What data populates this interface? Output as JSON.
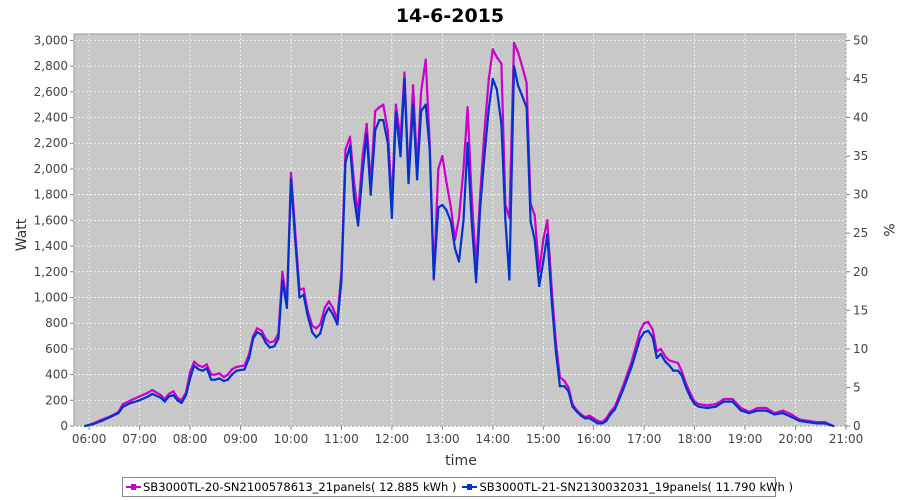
{
  "chart_data": {
    "type": "line",
    "title": "14-6-2015",
    "xlabel": "time",
    "ylabel": "Watt",
    "y2label": "%",
    "xlim": [
      5.7,
      21.0
    ],
    "ylim": [
      0,
      3050
    ],
    "y2lim": [
      0,
      50.83
    ],
    "x_ticks": [
      "06:00",
      "07:00",
      "08:00",
      "09:00",
      "10:00",
      "11:00",
      "12:00",
      "13:00",
      "14:00",
      "15:00",
      "16:00",
      "17:00",
      "18:00",
      "19:00",
      "20:00",
      "21:00"
    ],
    "y_ticks": [
      "0",
      "200",
      "400",
      "600",
      "800",
      "1,000",
      "1,200",
      "1,400",
      "1,600",
      "1,800",
      "2,000",
      "2,200",
      "2,400",
      "2,600",
      "2,800",
      "3,000"
    ],
    "y2_ticks": [
      "0",
      "5",
      "10",
      "15",
      "20",
      "25",
      "30",
      "35",
      "40",
      "45",
      "50"
    ],
    "grid": true,
    "plot_background": "#c8c8c8",
    "legend_position": "bottom",
    "series": [
      {
        "name": "SB3000TL-20-SN2100578613_21panels( 12.885 kWh )",
        "color": "#cc00cc",
        "points": [
          [
            5.92,
            0
          ],
          [
            6.08,
            20
          ],
          [
            6.25,
            50
          ],
          [
            6.42,
            75
          ],
          [
            6.58,
            110
          ],
          [
            6.67,
            170
          ],
          [
            6.83,
            200
          ],
          [
            7.0,
            230
          ],
          [
            7.17,
            260
          ],
          [
            7.25,
            280
          ],
          [
            7.42,
            240
          ],
          [
            7.5,
            210
          ],
          [
            7.58,
            250
          ],
          [
            7.67,
            270
          ],
          [
            7.75,
            220
          ],
          [
            7.83,
            200
          ],
          [
            7.92,
            260
          ],
          [
            8.0,
            420
          ],
          [
            8.08,
            500
          ],
          [
            8.17,
            470
          ],
          [
            8.25,
            460
          ],
          [
            8.33,
            480
          ],
          [
            8.42,
            400
          ],
          [
            8.5,
            400
          ],
          [
            8.58,
            410
          ],
          [
            8.67,
            380
          ],
          [
            8.75,
            400
          ],
          [
            8.83,
            440
          ],
          [
            8.92,
            460
          ],
          [
            9.08,
            470
          ],
          [
            9.17,
            560
          ],
          [
            9.25,
            700
          ],
          [
            9.33,
            760
          ],
          [
            9.42,
            740
          ],
          [
            9.5,
            680
          ],
          [
            9.58,
            650
          ],
          [
            9.67,
            660
          ],
          [
            9.75,
            720
          ],
          [
            9.83,
            1200
          ],
          [
            9.92,
            960
          ],
          [
            10.0,
            1970
          ],
          [
            10.08,
            1540
          ],
          [
            10.17,
            1060
          ],
          [
            10.25,
            1070
          ],
          [
            10.33,
            900
          ],
          [
            10.42,
            780
          ],
          [
            10.5,
            760
          ],
          [
            10.58,
            790
          ],
          [
            10.67,
            920
          ],
          [
            10.75,
            970
          ],
          [
            10.83,
            920
          ],
          [
            10.92,
            830
          ],
          [
            11.0,
            1200
          ],
          [
            11.08,
            2150
          ],
          [
            11.17,
            2250
          ],
          [
            11.25,
            1900
          ],
          [
            11.33,
            1650
          ],
          [
            11.42,
            2100
          ],
          [
            11.5,
            2350
          ],
          [
            11.58,
            1880
          ],
          [
            11.67,
            2450
          ],
          [
            11.75,
            2480
          ],
          [
            11.83,
            2500
          ],
          [
            11.92,
            2300
          ],
          [
            12.0,
            1750
          ],
          [
            12.08,
            2500
          ],
          [
            12.17,
            2230
          ],
          [
            12.25,
            2750
          ],
          [
            12.33,
            1950
          ],
          [
            12.42,
            2650
          ],
          [
            12.5,
            2000
          ],
          [
            12.58,
            2600
          ],
          [
            12.67,
            2850
          ],
          [
            12.75,
            2200
          ],
          [
            12.83,
            1140
          ],
          [
            12.92,
            2000
          ],
          [
            13.0,
            2100
          ],
          [
            13.08,
            1900
          ],
          [
            13.17,
            1700
          ],
          [
            13.25,
            1450
          ],
          [
            13.33,
            1620
          ],
          [
            13.42,
            2000
          ],
          [
            13.5,
            2480
          ],
          [
            13.58,
            1800
          ],
          [
            13.67,
            1240
          ],
          [
            13.75,
            1800
          ],
          [
            13.83,
            2270
          ],
          [
            13.92,
            2700
          ],
          [
            14.0,
            2930
          ],
          [
            14.08,
            2870
          ],
          [
            14.17,
            2820
          ],
          [
            14.25,
            1720
          ],
          [
            14.33,
            1620
          ],
          [
            14.42,
            2980
          ],
          [
            14.5,
            2910
          ],
          [
            14.58,
            2800
          ],
          [
            14.67,
            2670
          ],
          [
            14.75,
            1730
          ],
          [
            14.83,
            1640
          ],
          [
            14.92,
            1200
          ],
          [
            15.0,
            1450
          ],
          [
            15.08,
            1600
          ],
          [
            15.17,
            1060
          ],
          [
            15.25,
            650
          ],
          [
            15.33,
            380
          ],
          [
            15.42,
            350
          ],
          [
            15.5,
            300
          ],
          [
            15.58,
            170
          ],
          [
            15.67,
            120
          ],
          [
            15.75,
            90
          ],
          [
            15.83,
            70
          ],
          [
            15.92,
            80
          ],
          [
            16.0,
            60
          ],
          [
            16.08,
            40
          ],
          [
            16.17,
            30
          ],
          [
            16.25,
            60
          ],
          [
            16.33,
            110
          ],
          [
            16.42,
            150
          ],
          [
            16.58,
            310
          ],
          [
            16.75,
            500
          ],
          [
            16.92,
            740
          ],
          [
            17.0,
            800
          ],
          [
            17.08,
            810
          ],
          [
            17.17,
            750
          ],
          [
            17.25,
            580
          ],
          [
            17.33,
            600
          ],
          [
            17.42,
            540
          ],
          [
            17.5,
            510
          ],
          [
            17.58,
            500
          ],
          [
            17.67,
            490
          ],
          [
            17.75,
            420
          ],
          [
            17.83,
            330
          ],
          [
            17.92,
            250
          ],
          [
            18.0,
            190
          ],
          [
            18.08,
            170
          ],
          [
            18.25,
            160
          ],
          [
            18.42,
            170
          ],
          [
            18.58,
            210
          ],
          [
            18.75,
            210
          ],
          [
            18.92,
            140
          ],
          [
            19.08,
            110
          ],
          [
            19.25,
            140
          ],
          [
            19.42,
            140
          ],
          [
            19.58,
            100
          ],
          [
            19.75,
            120
          ],
          [
            19.92,
            90
          ],
          [
            20.08,
            50
          ],
          [
            20.25,
            40
          ],
          [
            20.42,
            30
          ],
          [
            20.58,
            30
          ],
          [
            20.75,
            0
          ]
        ]
      },
      {
        "name": "SB3000TL-21-SN2130032031_19panels( 11.790 kWh )",
        "color": "#0033cc",
        "points": [
          [
            5.92,
            0
          ],
          [
            6.08,
            15
          ],
          [
            6.25,
            40
          ],
          [
            6.42,
            70
          ],
          [
            6.58,
            100
          ],
          [
            6.67,
            150
          ],
          [
            6.83,
            180
          ],
          [
            7.0,
            200
          ],
          [
            7.17,
            230
          ],
          [
            7.25,
            250
          ],
          [
            7.42,
            220
          ],
          [
            7.5,
            190
          ],
          [
            7.58,
            230
          ],
          [
            7.67,
            240
          ],
          [
            7.75,
            200
          ],
          [
            7.83,
            180
          ],
          [
            7.92,
            240
          ],
          [
            8.0,
            370
          ],
          [
            8.08,
            470
          ],
          [
            8.17,
            440
          ],
          [
            8.25,
            430
          ],
          [
            8.33,
            450
          ],
          [
            8.42,
            360
          ],
          [
            8.5,
            360
          ],
          [
            8.58,
            370
          ],
          [
            8.67,
            350
          ],
          [
            8.75,
            360
          ],
          [
            8.83,
            400
          ],
          [
            8.92,
            430
          ],
          [
            9.08,
            440
          ],
          [
            9.17,
            530
          ],
          [
            9.25,
            680
          ],
          [
            9.33,
            730
          ],
          [
            9.42,
            710
          ],
          [
            9.5,
            650
          ],
          [
            9.58,
            610
          ],
          [
            9.67,
            620
          ],
          [
            9.75,
            680
          ],
          [
            9.83,
            1130
          ],
          [
            9.92,
            920
          ],
          [
            10.0,
            1920
          ],
          [
            10.08,
            1470
          ],
          [
            10.17,
            1000
          ],
          [
            10.25,
            1020
          ],
          [
            10.33,
            860
          ],
          [
            10.42,
            730
          ],
          [
            10.5,
            690
          ],
          [
            10.58,
            720
          ],
          [
            10.67,
            860
          ],
          [
            10.75,
            920
          ],
          [
            10.83,
            870
          ],
          [
            10.92,
            790
          ],
          [
            11.0,
            1130
          ],
          [
            11.08,
            2050
          ],
          [
            11.17,
            2180
          ],
          [
            11.25,
            1780
          ],
          [
            11.33,
            1560
          ],
          [
            11.42,
            1980
          ],
          [
            11.5,
            2270
          ],
          [
            11.58,
            1800
          ],
          [
            11.67,
            2300
          ],
          [
            11.75,
            2380
          ],
          [
            11.83,
            2380
          ],
          [
            11.92,
            2200
          ],
          [
            12.0,
            1620
          ],
          [
            12.08,
            2440
          ],
          [
            12.17,
            2100
          ],
          [
            12.25,
            2700
          ],
          [
            12.33,
            1890
          ],
          [
            12.42,
            2500
          ],
          [
            12.5,
            1920
          ],
          [
            12.58,
            2450
          ],
          [
            12.67,
            2500
          ],
          [
            12.75,
            2150
          ],
          [
            12.83,
            1150
          ],
          [
            12.92,
            1700
          ],
          [
            13.0,
            1720
          ],
          [
            13.08,
            1680
          ],
          [
            13.17,
            1590
          ],
          [
            13.25,
            1380
          ],
          [
            13.33,
            1280
          ],
          [
            13.42,
            1600
          ],
          [
            13.5,
            2200
          ],
          [
            13.58,
            1600
          ],
          [
            13.67,
            1120
          ],
          [
            13.75,
            1700
          ],
          [
            13.83,
            2080
          ],
          [
            13.92,
            2470
          ],
          [
            14.0,
            2700
          ],
          [
            14.08,
            2620
          ],
          [
            14.17,
            2350
          ],
          [
            14.25,
            1600
          ],
          [
            14.33,
            1140
          ],
          [
            14.42,
            2800
          ],
          [
            14.5,
            2650
          ],
          [
            14.58,
            2570
          ],
          [
            14.67,
            2480
          ],
          [
            14.75,
            1590
          ],
          [
            14.83,
            1450
          ],
          [
            14.92,
            1090
          ],
          [
            15.0,
            1280
          ],
          [
            15.08,
            1490
          ],
          [
            15.17,
            960
          ],
          [
            15.25,
            580
          ],
          [
            15.33,
            310
          ],
          [
            15.42,
            310
          ],
          [
            15.5,
            270
          ],
          [
            15.58,
            150
          ],
          [
            15.67,
            110
          ],
          [
            15.75,
            80
          ],
          [
            15.83,
            60
          ],
          [
            15.92,
            60
          ],
          [
            16.0,
            40
          ],
          [
            16.08,
            20
          ],
          [
            16.17,
            20
          ],
          [
            16.25,
            40
          ],
          [
            16.33,
            90
          ],
          [
            16.42,
            130
          ],
          [
            16.58,
            280
          ],
          [
            16.75,
            460
          ],
          [
            16.92,
            680
          ],
          [
            17.0,
            730
          ],
          [
            17.08,
            740
          ],
          [
            17.17,
            690
          ],
          [
            17.25,
            530
          ],
          [
            17.33,
            560
          ],
          [
            17.42,
            500
          ],
          [
            17.5,
            470
          ],
          [
            17.58,
            430
          ],
          [
            17.67,
            430
          ],
          [
            17.75,
            390
          ],
          [
            17.83,
            300
          ],
          [
            17.92,
            220
          ],
          [
            18.0,
            170
          ],
          [
            18.08,
            150
          ],
          [
            18.25,
            140
          ],
          [
            18.42,
            150
          ],
          [
            18.58,
            190
          ],
          [
            18.75,
            190
          ],
          [
            18.92,
            120
          ],
          [
            19.08,
            100
          ],
          [
            19.25,
            120
          ],
          [
            19.42,
            120
          ],
          [
            19.58,
            90
          ],
          [
            19.75,
            100
          ],
          [
            19.92,
            70
          ],
          [
            20.08,
            40
          ],
          [
            20.25,
            30
          ],
          [
            20.42,
            20
          ],
          [
            20.58,
            20
          ],
          [
            20.75,
            0
          ]
        ]
      }
    ]
  }
}
